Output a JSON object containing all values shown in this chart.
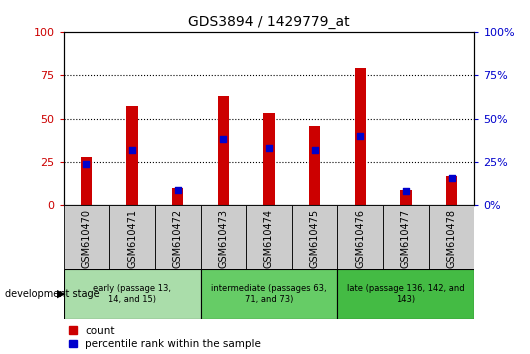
{
  "title": "GDS3894 / 1429779_at",
  "samples": [
    "GSM610470",
    "GSM610471",
    "GSM610472",
    "GSM610473",
    "GSM610474",
    "GSM610475",
    "GSM610476",
    "GSM610477",
    "GSM610478"
  ],
  "count_values": [
    28,
    57,
    10,
    63,
    53,
    46,
    79,
    9,
    17
  ],
  "percentile_values": [
    24,
    32,
    9,
    38,
    33,
    32,
    40,
    8,
    16
  ],
  "ylim": [
    0,
    100
  ],
  "yticks": [
    0,
    25,
    50,
    75,
    100
  ],
  "bar_color": "#cc0000",
  "dot_color": "#0000cc",
  "groups": [
    {
      "label": "early (passage 13,\n14, and 15)",
      "start": 0,
      "end": 2,
      "color": "#aaddaa"
    },
    {
      "label": "intermediate (passages 63,\n71, and 73)",
      "start": 3,
      "end": 5,
      "color": "#66cc66"
    },
    {
      "label": "late (passage 136, 142, and\n143)",
      "start": 6,
      "end": 8,
      "color": "#44bb44"
    }
  ],
  "xlabel_devstage": "development stage",
  "legend_count": "count",
  "legend_percentile": "percentile rank within the sample",
  "tick_label_color_left": "#cc0000",
  "tick_label_color_right": "#0000cc",
  "bg_plot": "#ffffff",
  "bg_xticklabel": "#cccccc",
  "bar_width": 0.25
}
